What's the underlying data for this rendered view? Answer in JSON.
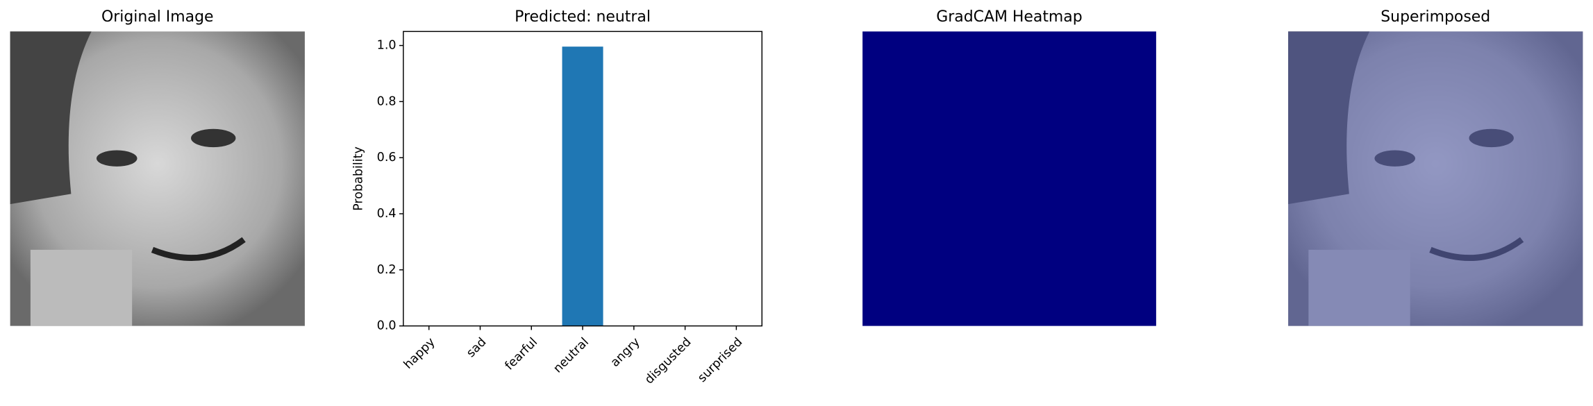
{
  "chart_data": [
    {
      "type": "image",
      "title": "Original Image"
    },
    {
      "type": "bar",
      "title": "Predicted: neutral",
      "ylabel": "Probability",
      "categories": [
        "happy",
        "sad",
        "fearful",
        "neutral",
        "angry",
        "disgusted",
        "surprised"
      ],
      "values": [
        0,
        0,
        0,
        0.996,
        0,
        0,
        0
      ],
      "color": "#1f77b4",
      "ylim": [
        0,
        1.05
      ],
      "yticks": [
        {
          "value": 0,
          "label": "0.0"
        },
        0.2,
        0.4,
        0.6,
        0.8,
        {
          "value": 1,
          "label": "1.0"
        }
      ]
    },
    {
      "type": "heatmap",
      "title": "GradCAM Heatmap",
      "color": "#000080"
    },
    {
      "type": "image",
      "title": "Superimposed",
      "tint": "#5a62b0"
    }
  ]
}
